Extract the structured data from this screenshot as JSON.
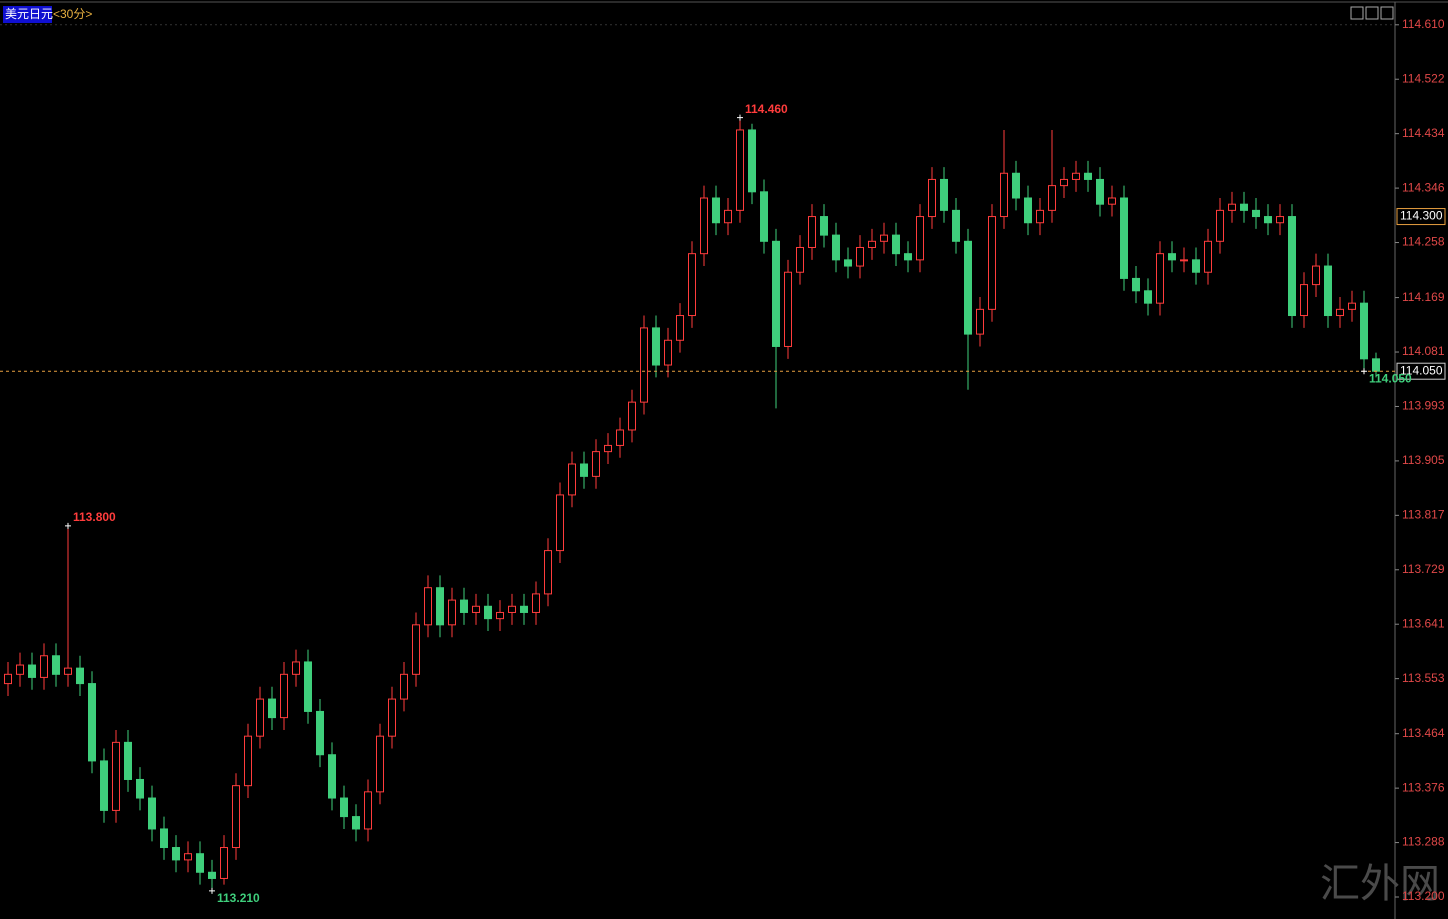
{
  "chart_data": {
    "type": "candlestick",
    "symbol": "美元日元",
    "period": "<30分>",
    "watermark": "汇外网",
    "up_color": "#ff3c3c",
    "down_color": "#3fcf7c",
    "grid": false,
    "ylim": [
      113.179,
      114.642
    ],
    "yticks": [
      {
        "value": 114.61,
        "label": "114.610"
      },
      {
        "value": 114.522,
        "label": "114.522"
      },
      {
        "value": 114.434,
        "label": "114.434"
      },
      {
        "value": 114.346,
        "label": "114.346"
      },
      {
        "value": 114.258,
        "label": "114.258"
      },
      {
        "value": 114.169,
        "label": "114.169"
      },
      {
        "value": 114.081,
        "label": "114.081"
      },
      {
        "value": 113.993,
        "label": "113.993"
      },
      {
        "value": 113.905,
        "label": "113.905"
      },
      {
        "value": 113.817,
        "label": "113.817"
      },
      {
        "value": 113.729,
        "label": "113.729"
      },
      {
        "value": 113.641,
        "label": "113.641"
      },
      {
        "value": 113.553,
        "label": "113.553"
      },
      {
        "value": 113.464,
        "label": "113.464"
      },
      {
        "value": 113.376,
        "label": "113.376"
      },
      {
        "value": 113.288,
        "label": "113.288"
      },
      {
        "value": 113.2,
        "label": "113.200"
      }
    ],
    "last_price": {
      "value": 114.05,
      "label": "114.050"
    },
    "marker_price": {
      "value": 114.3,
      "label": "114.300"
    },
    "annotations": [
      {
        "value": 114.46,
        "label": "114.460"
      },
      {
        "value": 113.8,
        "label": "113.800"
      },
      {
        "value": 113.21,
        "label": "113.210"
      },
      {
        "value": 114.05,
        "label": "114.050"
      }
    ],
    "open": [
      113.545,
      113.56,
      113.575,
      113.555,
      113.59,
      113.56,
      113.57,
      113.545,
      113.42,
      113.34,
      113.45,
      113.39,
      113.36,
      113.31,
      113.28,
      113.26,
      113.27,
      113.24,
      113.23,
      113.28,
      113.38,
      113.46,
      113.52,
      113.49,
      113.56,
      113.58,
      113.5,
      113.43,
      113.36,
      113.33,
      113.31,
      113.37,
      113.46,
      113.52,
      113.56,
      113.64,
      113.7,
      113.64,
      113.68,
      113.66,
      113.67,
      113.65,
      113.66,
      113.67,
      113.66,
      113.69,
      113.76,
      113.85,
      113.9,
      113.88,
      113.92,
      113.93,
      113.955,
      114.0,
      114.12,
      114.06,
      114.1,
      114.14,
      114.24,
      114.33,
      114.29,
      114.31,
      114.44,
      114.34,
      114.26,
      114.09,
      114.21,
      114.25,
      114.3,
      114.27,
      114.23,
      114.22,
      114.25,
      114.26,
      114.27,
      114.24,
      114.23,
      114.3,
      114.36,
      114.31,
      114.26,
      114.11,
      114.15,
      114.3,
      114.37,
      114.33,
      114.29,
      114.31,
      114.35,
      114.36,
      114.37,
      114.36,
      114.32,
      114.33,
      114.2,
      114.18,
      114.16,
      114.24,
      114.23,
      114.23,
      114.21,
      114.26,
      114.31,
      114.32,
      114.31,
      114.3,
      114.29,
      114.3,
      114.14,
      114.19,
      114.22,
      114.14,
      114.15,
      114.16,
      114.07
    ],
    "high": [
      113.58,
      113.595,
      113.595,
      113.61,
      113.61,
      113.8,
      113.59,
      113.565,
      113.44,
      113.47,
      113.47,
      113.41,
      113.38,
      113.33,
      113.3,
      113.29,
      113.29,
      113.26,
      113.3,
      113.4,
      113.48,
      113.54,
      113.54,
      113.58,
      113.6,
      113.6,
      113.52,
      113.45,
      113.38,
      113.35,
      113.39,
      113.48,
      113.54,
      113.58,
      113.66,
      113.72,
      113.72,
      113.7,
      113.7,
      113.69,
      113.69,
      113.68,
      113.69,
      113.69,
      113.71,
      113.78,
      113.87,
      113.92,
      113.92,
      113.94,
      113.95,
      113.975,
      114.02,
      114.14,
      114.14,
      114.12,
      114.16,
      114.26,
      114.35,
      114.35,
      114.33,
      114.46,
      114.45,
      114.36,
      114.28,
      114.23,
      114.27,
      114.32,
      114.32,
      114.29,
      114.25,
      114.27,
      114.28,
      114.29,
      114.29,
      114.26,
      114.32,
      114.38,
      114.38,
      114.33,
      114.28,
      114.17,
      114.32,
      114.44,
      114.39,
      114.35,
      114.33,
      114.44,
      114.38,
      114.39,
      114.39,
      114.38,
      114.35,
      114.35,
      114.22,
      114.2,
      114.26,
      114.26,
      114.25,
      114.25,
      114.28,
      114.33,
      114.34,
      114.34,
      114.33,
      114.32,
      114.32,
      114.32,
      114.21,
      114.24,
      114.24,
      114.17,
      114.18,
      114.18,
      114.08
    ],
    "low": [
      113.525,
      113.54,
      113.535,
      113.535,
      113.54,
      113.54,
      113.525,
      113.4,
      113.32,
      113.32,
      113.37,
      113.34,
      113.29,
      113.26,
      113.24,
      113.24,
      113.22,
      113.21,
      113.22,
      113.26,
      113.36,
      113.44,
      113.47,
      113.47,
      113.54,
      113.48,
      113.41,
      113.34,
      113.31,
      113.29,
      113.29,
      113.35,
      113.44,
      113.5,
      113.54,
      113.62,
      113.62,
      113.62,
      113.64,
      113.64,
      113.63,
      113.63,
      113.64,
      113.64,
      113.64,
      113.67,
      113.74,
      113.83,
      113.86,
      113.86,
      113.9,
      113.91,
      113.935,
      113.98,
      114.04,
      114.04,
      114.08,
      114.12,
      114.22,
      114.27,
      114.27,
      114.29,
      114.32,
      114.24,
      113.99,
      114.07,
      114.19,
      114.23,
      114.25,
      114.21,
      114.2,
      114.2,
      114.23,
      114.24,
      114.22,
      114.21,
      114.21,
      114.28,
      114.29,
      114.24,
      114.02,
      114.09,
      114.13,
      114.28,
      114.31,
      114.27,
      114.27,
      114.29,
      114.33,
      114.34,
      114.34,
      114.3,
      114.3,
      114.18,
      114.16,
      114.14,
      114.14,
      114.21,
      114.21,
      114.19,
      114.19,
      114.24,
      114.29,
      114.29,
      114.28,
      114.27,
      114.27,
      114.12,
      114.12,
      114.17,
      114.12,
      114.12,
      114.13,
      114.05,
      114.04
    ],
    "close": [
      113.56,
      113.575,
      113.555,
      113.59,
      113.56,
      113.57,
      113.545,
      113.42,
      113.34,
      113.45,
      113.39,
      113.36,
      113.31,
      113.28,
      113.26,
      113.27,
      113.24,
      113.23,
      113.28,
      113.38,
      113.46,
      113.52,
      113.49,
      113.56,
      113.58,
      113.5,
      113.43,
      113.36,
      113.33,
      113.31,
      113.37,
      113.46,
      113.52,
      113.56,
      113.64,
      113.7,
      113.64,
      113.68,
      113.66,
      113.67,
      113.65,
      113.66,
      113.67,
      113.66,
      113.69,
      113.76,
      113.85,
      113.9,
      113.88,
      113.92,
      113.93,
      113.955,
      114.0,
      114.12,
      114.06,
      114.1,
      114.14,
      114.24,
      114.33,
      114.29,
      114.31,
      114.44,
      114.34,
      114.26,
      114.09,
      114.21,
      114.25,
      114.3,
      114.27,
      114.23,
      114.22,
      114.25,
      114.26,
      114.27,
      114.24,
      114.23,
      114.3,
      114.36,
      114.31,
      114.26,
      114.11,
      114.15,
      114.3,
      114.37,
      114.33,
      114.29,
      114.31,
      114.35,
      114.36,
      114.37,
      114.36,
      114.32,
      114.33,
      114.2,
      114.18,
      114.16,
      114.24,
      114.23,
      114.23,
      114.21,
      114.26,
      114.31,
      114.32,
      114.31,
      114.3,
      114.29,
      114.3,
      114.14,
      114.19,
      114.22,
      114.14,
      114.15,
      114.16,
      114.07,
      114.05
    ]
  }
}
